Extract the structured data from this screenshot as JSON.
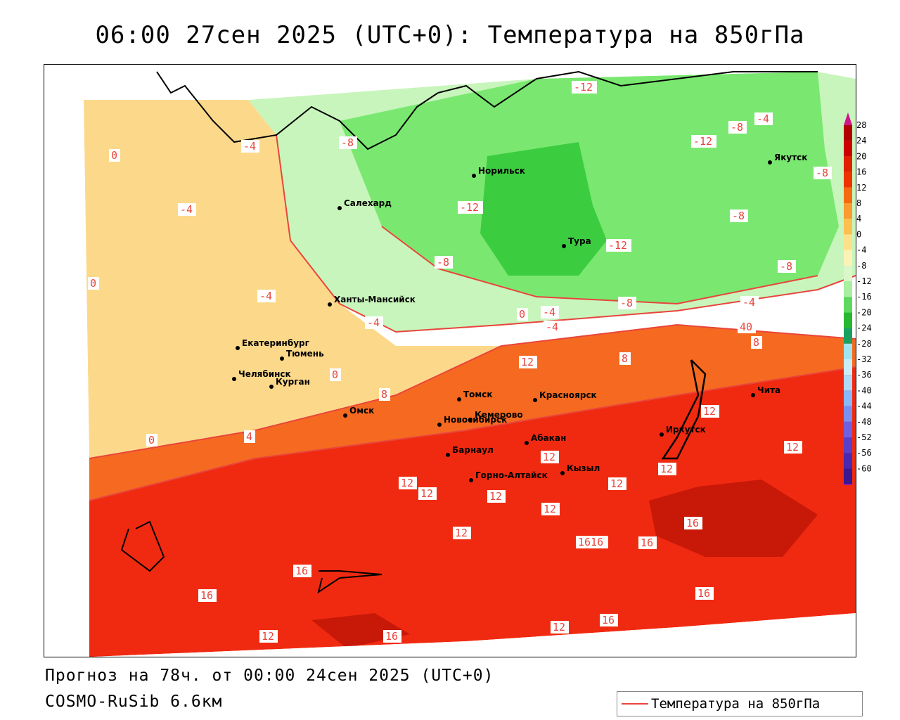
{
  "title": "06:00 27сен 2025 (UTC+0): Температура на 850гПа",
  "footer": {
    "forecast": "Прогноз на 78ч. от 00:00 24сен 2025 (UTC+0)",
    "model": "COSMO-RuSib 6.6км"
  },
  "legend": {
    "label": "Температура на 850гПа",
    "color": "#e8453c"
  },
  "colorbar": {
    "ticks": [
      "28",
      "24",
      "20",
      "16",
      "12",
      "8",
      "4",
      "0",
      "-4",
      "-8",
      "-12",
      "-16",
      "-20",
      "-24",
      "-28",
      "-32",
      "-36",
      "-40",
      "-44",
      "-48",
      "-52",
      "-56",
      "-60"
    ],
    "colors": [
      "#b00000",
      "#cc0000",
      "#e02000",
      "#ee3300",
      "#f56a10",
      "#fa9a30",
      "#fcc050",
      "#fde08a",
      "#fdf2b5",
      "#d9f7c8",
      "#a8efa0",
      "#5fd860",
      "#28b830",
      "#1aa060",
      "#a0e4f0",
      "#c8eef8",
      "#b0d8f8",
      "#88b8f8",
      "#7a90f0",
      "#7060e0",
      "#5a40c8",
      "#4a28b0",
      "#3a1890"
    ]
  },
  "cities": [
    {
      "name": "Норильск"
    },
    {
      "name": "Якутск"
    },
    {
      "name": "Салехард"
    },
    {
      "name": "Тура"
    },
    {
      "name": "Ханты-Мансийск"
    },
    {
      "name": "Екатеринбург"
    },
    {
      "name": "Тюмень"
    },
    {
      "name": "Челябинск"
    },
    {
      "name": "Курган"
    },
    {
      "name": "Омск"
    },
    {
      "name": "Томск"
    },
    {
      "name": "Красноярск"
    },
    {
      "name": "Новосибирск"
    },
    {
      "name": "Кемерово"
    },
    {
      "name": "Барнаул"
    },
    {
      "name": "Абакан"
    },
    {
      "name": "Горно-Алтайск"
    },
    {
      "name": "Кызыл"
    },
    {
      "name": "Иркутск"
    },
    {
      "name": "Чита"
    }
  ],
  "contour_labels": [
    "-12",
    "-8",
    "-4",
    "-12",
    "-8",
    "-4",
    "-8",
    "0",
    "-4",
    "-8",
    "-12",
    "-8",
    "-12",
    "-8",
    "0",
    "-4",
    "-4",
    "-4",
    "-8",
    "-4",
    "-4",
    "0",
    "4",
    "0",
    "8",
    "40",
    "0",
    "4",
    "8",
    "12",
    "8",
    "12",
    "12",
    "12",
    "12",
    "12",
    "12",
    "12",
    "12",
    "12",
    "12",
    "16",
    "16",
    "1616",
    "16",
    "16",
    "12",
    "16",
    "12",
    "16",
    "16"
  ]
}
